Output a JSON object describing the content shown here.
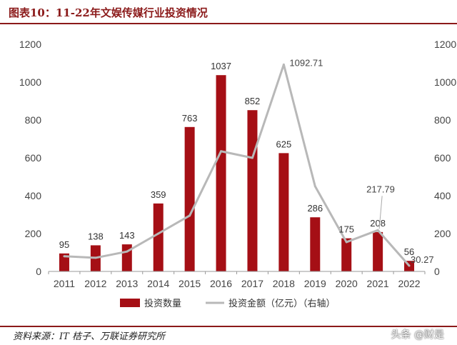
{
  "figure": {
    "title": "图表10：11-22年文娱传媒行业投资情况",
    "source": "资料来源：IT 桔子、万联证券研究所",
    "watermark": "头条 @财是"
  },
  "colors": {
    "bar": "#a50f15",
    "line": "#b8b8b8",
    "accent": "#8b1a1a"
  },
  "chart_data": {
    "type": "bar",
    "categories": [
      "2011",
      "2012",
      "2013",
      "2014",
      "2015",
      "2016",
      "2017",
      "2018",
      "2019",
      "2020",
      "2021",
      "2022"
    ],
    "ylim": [
      0,
      1200
    ],
    "y2lim": [
      0,
      1200
    ],
    "yticks": [
      0,
      200,
      400,
      600,
      800,
      1000,
      1200
    ],
    "legend_position": "bottom",
    "grid": false,
    "series": [
      {
        "name": "投资数量",
        "type": "bar",
        "axis": "left",
        "values": [
          95,
          138,
          143,
          359,
          763,
          1037,
          852,
          625,
          286,
          175,
          208,
          56
        ],
        "labels": [
          "95",
          "138",
          "143",
          "359",
          "763",
          "1037",
          "852",
          "625",
          "286",
          "175",
          "208",
          "56"
        ]
      },
      {
        "name": "投资金额（亿元）（右轴）",
        "type": "line",
        "axis": "right",
        "values": [
          80,
          72,
          105,
          200,
          295,
          635,
          600,
          1092.71,
          450,
          155,
          217.79,
          30.27
        ],
        "labels": [
          "",
          "",
          "",
          "",
          "",
          "",
          "",
          "1092.71",
          "",
          "",
          "217.79",
          "30.27"
        ]
      }
    ]
  }
}
